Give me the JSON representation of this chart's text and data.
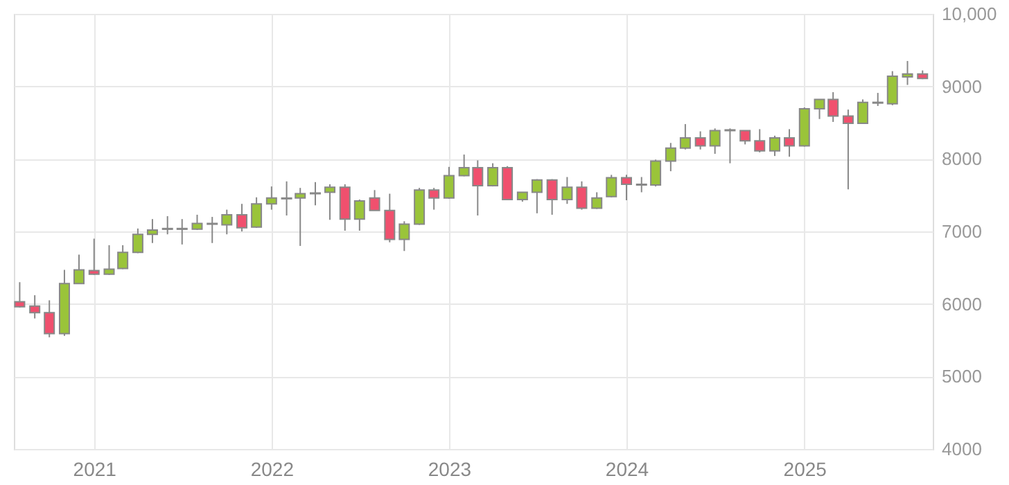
{
  "chart_data": {
    "type": "candlestick",
    "x": [
      "2020-08",
      "2020-09",
      "2020-10",
      "2020-11",
      "2020-12",
      "2021-01",
      "2021-02",
      "2021-03",
      "2021-04",
      "2021-05",
      "2021-06",
      "2021-07",
      "2021-08",
      "2021-09",
      "2021-10",
      "2021-11",
      "2021-12",
      "2022-01",
      "2022-02",
      "2022-03",
      "2022-04",
      "2022-05",
      "2022-06",
      "2022-07",
      "2022-08",
      "2022-09",
      "2022-10",
      "2022-11",
      "2022-12",
      "2023-01",
      "2023-02",
      "2023-03",
      "2023-04",
      "2023-05",
      "2023-06",
      "2023-07",
      "2023-08",
      "2023-09",
      "2023-10",
      "2023-11",
      "2023-12",
      "2024-01",
      "2024-02",
      "2024-03",
      "2024-04",
      "2024-05",
      "2024-06",
      "2024-07",
      "2024-08",
      "2024-09",
      "2024-10",
      "2024-11",
      "2024-12",
      "2025-01",
      "2025-02",
      "2025-03",
      "2025-04",
      "2025-05",
      "2025-06",
      "2025-07",
      "2025-08",
      "2025-09"
    ],
    "ohlc": [
      [
        6030,
        6300,
        5950,
        5960
      ],
      [
        5970,
        6120,
        5800,
        5880
      ],
      [
        5880,
        6050,
        5540,
        5590
      ],
      [
        5590,
        6470,
        5560,
        6280
      ],
      [
        6280,
        6680,
        6275,
        6470
      ],
      [
        6460,
        6900,
        6400,
        6410
      ],
      [
        6410,
        6810,
        6400,
        6480
      ],
      [
        6490,
        6810,
        6480,
        6710
      ],
      [
        6710,
        7040,
        6700,
        6960
      ],
      [
        6960,
        7170,
        6840,
        7020
      ],
      [
        7030,
        7210,
        6960,
        7040
      ],
      [
        7030,
        7170,
        6820,
        7040
      ],
      [
        7030,
        7230,
        7020,
        7110
      ],
      [
        7110,
        7200,
        6840,
        7100
      ],
      [
        7090,
        7300,
        6960,
        7230
      ],
      [
        7230,
        7380,
        7000,
        7050
      ],
      [
        7060,
        7470,
        7050,
        7380
      ],
      [
        7380,
        7620,
        7300,
        7460
      ],
      [
        7450,
        7690,
        7220,
        7460
      ],
      [
        7460,
        7600,
        6800,
        7520
      ],
      [
        7520,
        7680,
        7360,
        7530
      ],
      [
        7540,
        7650,
        7160,
        7610
      ],
      [
        7610,
        7650,
        7010,
        7170
      ],
      [
        7170,
        7440,
        7010,
        7420
      ],
      [
        7460,
        7570,
        7290,
        7290
      ],
      [
        7290,
        7520,
        6850,
        6890
      ],
      [
        6890,
        7140,
        6730,
        7100
      ],
      [
        7100,
        7600,
        7090,
        7570
      ],
      [
        7570,
        7600,
        7300,
        7460
      ],
      [
        7460,
        7890,
        7450,
        7770
      ],
      [
        7770,
        8060,
        7760,
        7880
      ],
      [
        7880,
        7980,
        7220,
        7630
      ],
      [
        7630,
        7940,
        7620,
        7880
      ],
      [
        7880,
        7900,
        7430,
        7440
      ],
      [
        7440,
        7540,
        7410,
        7540
      ],
      [
        7540,
        7720,
        7250,
        7710
      ],
      [
        7710,
        7720,
        7230,
        7440
      ],
      [
        7440,
        7750,
        7380,
        7610
      ],
      [
        7610,
        7690,
        7300,
        7320
      ],
      [
        7320,
        7540,
        7310,
        7460
      ],
      [
        7480,
        7780,
        7470,
        7740
      ],
      [
        7740,
        7780,
        7430,
        7650
      ],
      [
        7640,
        7750,
        7540,
        7650
      ],
      [
        7640,
        7990,
        7620,
        7970
      ],
      [
        7970,
        8220,
        7830,
        8150
      ],
      [
        8150,
        8480,
        8130,
        8290
      ],
      [
        8290,
        8380,
        8130,
        8180
      ],
      [
        8180,
        8420,
        8070,
        8390
      ],
      [
        8390,
        8420,
        7940,
        8400
      ],
      [
        8390,
        8390,
        8200,
        8250
      ],
      [
        8250,
        8410,
        8090,
        8110
      ],
      [
        8110,
        8320,
        8040,
        8290
      ],
      [
        8290,
        8410,
        8030,
        8180
      ],
      [
        8180,
        8710,
        8170,
        8690
      ],
      [
        8690,
        8820,
        8550,
        8820
      ],
      [
        8820,
        8920,
        8510,
        8590
      ],
      [
        8590,
        8680,
        7580,
        8490
      ],
      [
        8490,
        8820,
        8490,
        8780
      ],
      [
        8770,
        8910,
        8730,
        8780
      ],
      [
        8760,
        9210,
        8740,
        9140
      ],
      [
        9130,
        9350,
        9020,
        9170
      ],
      [
        9170,
        9220,
        9100,
        9110
      ]
    ],
    "colors": [
      "#f0506e",
      "#f0506e",
      "#f0506e",
      "#9ac43a",
      "#9ac43a",
      "#f0506e",
      "#9ac43a",
      "#9ac43a",
      "#9ac43a",
      "#9ac43a",
      "#9ac43a",
      "#9ac43a",
      "#9ac43a",
      "#f0506e",
      "#9ac43a",
      "#f0506e",
      "#9ac43a",
      "#9ac43a",
      "#9ac43a",
      "#9ac43a",
      "#9ac43a",
      "#9ac43a",
      "#f0506e",
      "#9ac43a",
      "#f0506e",
      "#f0506e",
      "#9ac43a",
      "#9ac43a",
      "#f0506e",
      "#9ac43a",
      "#9ac43a",
      "#f0506e",
      "#9ac43a",
      "#f0506e",
      "#9ac43a",
      "#9ac43a",
      "#f0506e",
      "#9ac43a",
      "#f0506e",
      "#9ac43a",
      "#9ac43a",
      "#f0506e",
      "#9ac43a",
      "#9ac43a",
      "#9ac43a",
      "#9ac43a",
      "#f0506e",
      "#9ac43a",
      "#9ac43a",
      "#f0506e",
      "#f0506e",
      "#9ac43a",
      "#f0506e",
      "#9ac43a",
      "#9ac43a",
      "#f0506e",
      "#f0506e",
      "#9ac43a",
      "#9ac43a",
      "#9ac43a",
      "#9ac43a",
      "#f0506e"
    ],
    "xlim": [
      "2020-07-20",
      "2025-09-22"
    ],
    "xticks": [
      {
        "value": "2021-01-01",
        "label": "2021"
      },
      {
        "value": "2022-01-01",
        "label": "2022"
      },
      {
        "value": "2023-01-01",
        "label": "2023"
      },
      {
        "value": "2024-01-01",
        "label": "2024"
      },
      {
        "value": "2025-01-01",
        "label": "2025"
      }
    ],
    "ylim": [
      4000,
      10000
    ],
    "yticks": [
      4000,
      5000,
      6000,
      7000,
      8000,
      9000,
      {
        "value": 10000,
        "label": "10,000"
      }
    ],
    "grid": true
  }
}
